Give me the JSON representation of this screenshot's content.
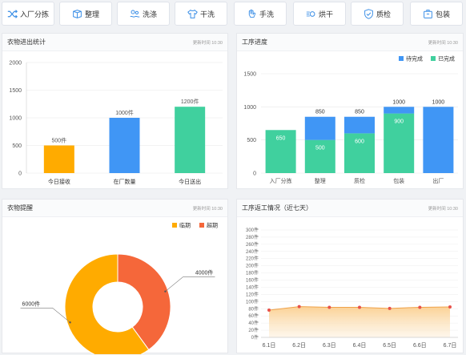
{
  "toolbar": {
    "buttons": [
      {
        "label": "入厂分拣",
        "icon": "shuffle-icon"
      },
      {
        "label": "整理",
        "icon": "box-icon"
      },
      {
        "label": "洗涤",
        "icon": "wash-icon"
      },
      {
        "label": "干洗",
        "icon": "shirt-icon"
      },
      {
        "label": "手洗",
        "icon": "hand-icon"
      },
      {
        "label": "烘干",
        "icon": "dryer-icon"
      },
      {
        "label": "质检",
        "icon": "shield-check-icon"
      },
      {
        "label": "包装",
        "icon": "package-icon"
      }
    ]
  },
  "panels": {
    "inout": {
      "title": "衣物进出统计",
      "time": "更新时间 10:30"
    },
    "progress": {
      "title": "工序进度",
      "time": "更新时间 10:30"
    },
    "reminder": {
      "title": "衣物提醒",
      "time": "更新时间 10:30"
    },
    "rework": {
      "title": "工序返工情况（近七天）",
      "time": "更新时间 10:30"
    }
  },
  "colors": {
    "orange": "#ffab00",
    "blue": "#4096f5",
    "green": "#40d09e",
    "red": "#f5673a",
    "line": "#e8514a",
    "area": "#fcd7a4"
  },
  "chart_data": [
    {
      "id": "inout",
      "type": "bar",
      "categories": [
        "今日接收",
        "在厂数量",
        "今日送出"
      ],
      "values": [
        500,
        1000,
        1200
      ],
      "data_labels": [
        "500件",
        "1000件",
        "1200件"
      ],
      "bar_colors": [
        "#ffab00",
        "#4096f5",
        "#40d09e"
      ],
      "y_ticks": [
        "0",
        "500",
        "1000",
        "1500",
        "2000"
      ],
      "ylim": [
        0,
        2000
      ]
    },
    {
      "id": "progress",
      "type": "bar",
      "stacked": true,
      "categories": [
        "入厂分拣",
        "整理",
        "质检",
        "包装",
        "出厂"
      ],
      "series": [
        {
          "name": "待完成",
          "color": "#4096f5",
          "values": [
            0,
            350,
            250,
            100,
            1000
          ]
        },
        {
          "name": "已完成",
          "color": "#40d09e",
          "values": [
            650,
            500,
            600,
            900,
            0
          ]
        }
      ],
      "total_labels": [
        "",
        "850",
        "850",
        "1000",
        "1000"
      ],
      "inner_labels": [
        "650",
        "500",
        "600",
        "900",
        ""
      ],
      "y_ticks": [
        "0",
        "500",
        "1000",
        "1500"
      ],
      "ylim": [
        0,
        1500
      ],
      "legend": "top-right"
    },
    {
      "id": "reminder",
      "type": "pie",
      "donut": true,
      "slices": [
        {
          "name": "临期",
          "value": 6000,
          "label": "6000件",
          "color": "#ffab00"
        },
        {
          "name": "超期",
          "value": 4000,
          "label": "4000件",
          "color": "#f5673a"
        }
      ],
      "legend": "top-right"
    },
    {
      "id": "rework",
      "type": "area",
      "categories": [
        "6.1日",
        "6.2日",
        "6.3日",
        "6.4日",
        "6.5日",
        "6.6日",
        "6.7日"
      ],
      "values": [
        76,
        86,
        84,
        84,
        81,
        84,
        85
      ],
      "y_ticks": [
        "0件",
        "20件",
        "40件",
        "60件",
        "80件",
        "100件",
        "120件",
        "140件",
        "160件",
        "180件",
        "200件",
        "220件",
        "240件",
        "260件",
        "280件",
        "300件"
      ],
      "ylim": [
        0,
        300
      ]
    }
  ]
}
